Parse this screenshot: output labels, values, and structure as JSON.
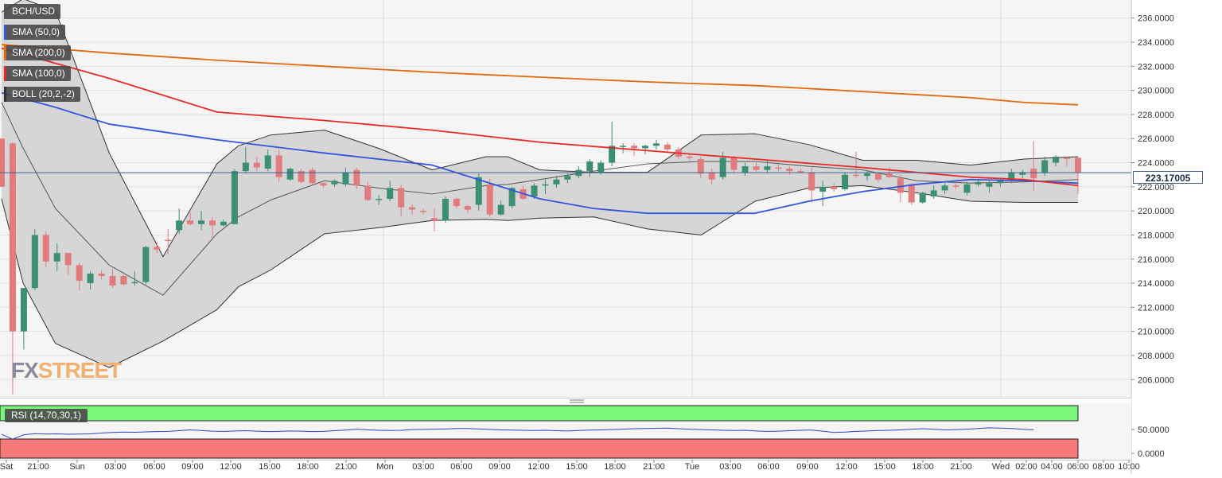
{
  "symbol": "BCH/USD",
  "legend": [
    {
      "label": "SMA (50,0)",
      "color": "#3355dd"
    },
    {
      "label": "SMA (200,0)",
      "color": "#e06a10"
    },
    {
      "label": "SMA (100,0)",
      "color": "#e62a2a"
    },
    {
      "label": "BOLL (20,2,-2)",
      "color": "#333333"
    }
  ],
  "watermark": {
    "part1": "FX",
    "part2": "STREET"
  },
  "last_price_label": "223.17005",
  "colors": {
    "up": "#3c8f72",
    "down": "#e07c7c",
    "band_fill": "#d3d3d3",
    "rsi_overbought": "#7af77a",
    "rsi_oversold": "#f77a7a",
    "rsi_line": "#3344cc"
  },
  "rsi": {
    "label": "RSI (14,70,30,1)",
    "ticks": [
      "50.0000",
      "0.0000"
    ]
  },
  "chart_data": {
    "type": "candlestick",
    "ylim": [
      204.5,
      237.5
    ],
    "y_ticks": [
      206,
      208,
      210,
      212,
      214,
      216,
      218,
      220,
      222,
      224,
      226,
      228,
      230,
      232,
      234,
      236
    ],
    "y_tick_labels": [
      "206.0000",
      "208.0000",
      "210.0000",
      "212.0000",
      "214.0000",
      "216.0000",
      "218.0000",
      "220.0000",
      "222.0000",
      "224.0000",
      "226.0000",
      "228.0000",
      "230.0000",
      "232.0000",
      "234.0000",
      "236.0000"
    ],
    "x_tick_labels": [
      "Sat",
      "21:00",
      "Sun",
      "03:00",
      "06:00",
      "09:00",
      "12:00",
      "15:00",
      "18:00",
      "21:00",
      "Mon",
      "03:00",
      "06:00",
      "09:00",
      "12:00",
      "15:00",
      "18:00",
      "21:00",
      "Tue",
      "03:00",
      "06:00",
      "09:00",
      "12:00",
      "15:00",
      "18:00",
      "21:00",
      "Wed",
      "02:00",
      "04:00",
      "06:00",
      "08:00",
      "10:00"
    ],
    "last_price": 223.17,
    "candles": [
      {
        "o": 226,
        "h": 226,
        "l": 222,
        "c": 222
      },
      {
        "o": 225.6,
        "h": 225.7,
        "l": 204.8,
        "c": 210
      },
      {
        "o": 210,
        "h": 213.6,
        "l": 208.5,
        "c": 213.6
      },
      {
        "o": 213.6,
        "h": 218.5,
        "l": 213.4,
        "c": 218
      },
      {
        "o": 218,
        "h": 218.3,
        "l": 215.3,
        "c": 215.8
      },
      {
        "o": 215.8,
        "h": 217.3,
        "l": 215,
        "c": 216.5
      },
      {
        "o": 216.5,
        "h": 216.5,
        "l": 214.7,
        "c": 215.5
      },
      {
        "o": 215.5,
        "h": 215.7,
        "l": 213.4,
        "c": 214.2
      },
      {
        "o": 214,
        "h": 215,
        "l": 213.5,
        "c": 214.8
      },
      {
        "o": 214.8,
        "h": 215.1,
        "l": 214.3,
        "c": 214.6
      },
      {
        "o": 214.6,
        "h": 215.2,
        "l": 213.6,
        "c": 213.8
      },
      {
        "o": 214.6,
        "h": 214.7,
        "l": 213.8,
        "c": 213.9
      },
      {
        "o": 214,
        "h": 215,
        "l": 213.8,
        "c": 214.1
      },
      {
        "o": 214.1,
        "h": 217.1,
        "l": 213.9,
        "c": 217
      },
      {
        "o": 217,
        "h": 217.4,
        "l": 216.5,
        "c": 216.8
      },
      {
        "o": 217.6,
        "h": 218.5,
        "l": 216.4,
        "c": 217.5
      },
      {
        "o": 218.4,
        "h": 220.2,
        "l": 218.1,
        "c": 219.2
      },
      {
        "o": 219.2,
        "h": 219.9,
        "l": 218.8,
        "c": 218.9
      },
      {
        "o": 218.9,
        "h": 220,
        "l": 218.4,
        "c": 219.2
      },
      {
        "o": 219.2,
        "h": 219.5,
        "l": 217.7,
        "c": 218.8
      },
      {
        "o": 218.8,
        "h": 219.3,
        "l": 218.7,
        "c": 219.1
      },
      {
        "o": 218.9,
        "h": 223.5,
        "l": 218.9,
        "c": 223.3
      },
      {
        "o": 223.3,
        "h": 225.3,
        "l": 223.1,
        "c": 224
      },
      {
        "o": 224,
        "h": 224.5,
        "l": 223.3,
        "c": 223.6
      },
      {
        "o": 223.5,
        "h": 225.1,
        "l": 223.3,
        "c": 224.6
      },
      {
        "o": 224.6,
        "h": 225.1,
        "l": 222.4,
        "c": 222.8
      },
      {
        "o": 222.6,
        "h": 223.6,
        "l": 222.5,
        "c": 223.5
      },
      {
        "o": 223.3,
        "h": 223.5,
        "l": 222.3,
        "c": 222.4
      },
      {
        "o": 223.4,
        "h": 223.6,
        "l": 222.1,
        "c": 222.3
      },
      {
        "o": 222.3,
        "h": 222.5,
        "l": 221.9,
        "c": 222.1
      },
      {
        "o": 222.2,
        "h": 222.6,
        "l": 222,
        "c": 222.5
      },
      {
        "o": 222.2,
        "h": 223.6,
        "l": 222,
        "c": 223.2
      },
      {
        "o": 223.4,
        "h": 223.6,
        "l": 221.8,
        "c": 222.1
      },
      {
        "o": 222.1,
        "h": 222.4,
        "l": 220.8,
        "c": 220.9
      },
      {
        "o": 220.9,
        "h": 221.3,
        "l": 220.5,
        "c": 221
      },
      {
        "o": 221,
        "h": 222.5,
        "l": 220.8,
        "c": 221.9
      },
      {
        "o": 221.9,
        "h": 222.2,
        "l": 219.5,
        "c": 220.3
      },
      {
        "o": 220.3,
        "h": 220.5,
        "l": 219.7,
        "c": 220.1
      },
      {
        "o": 220,
        "h": 220.2,
        "l": 219.7,
        "c": 219.9
      },
      {
        "o": 219.4,
        "h": 220.2,
        "l": 218.3,
        "c": 219.2
      },
      {
        "o": 219.2,
        "h": 221.2,
        "l": 219,
        "c": 221
      },
      {
        "o": 221,
        "h": 221.1,
        "l": 220.2,
        "c": 220.4
      },
      {
        "o": 220.4,
        "h": 220.5,
        "l": 219.8,
        "c": 220.1
      },
      {
        "o": 220.5,
        "h": 223.1,
        "l": 220,
        "c": 222.8
      },
      {
        "o": 222.2,
        "h": 222.7,
        "l": 219.5,
        "c": 219.7
      },
      {
        "o": 219.7,
        "h": 220.9,
        "l": 219.6,
        "c": 220.5
      },
      {
        "o": 220.4,
        "h": 222,
        "l": 220.2,
        "c": 221.9
      },
      {
        "o": 221.8,
        "h": 222.1,
        "l": 220.9,
        "c": 221
      },
      {
        "o": 221.2,
        "h": 222.3,
        "l": 221,
        "c": 222.1
      },
      {
        "o": 222.1,
        "h": 222.6,
        "l": 221.4,
        "c": 222.2
      },
      {
        "o": 222.2,
        "h": 222.9,
        "l": 221.9,
        "c": 222.6
      },
      {
        "o": 222.6,
        "h": 223.1,
        "l": 222.3,
        "c": 222.9
      },
      {
        "o": 222.9,
        "h": 223.7,
        "l": 222.7,
        "c": 223.4
      },
      {
        "o": 223.3,
        "h": 224.3,
        "l": 222.8,
        "c": 224.1
      },
      {
        "o": 223.2,
        "h": 224.2,
        "l": 223,
        "c": 224
      },
      {
        "o": 224,
        "h": 227.4,
        "l": 223.7,
        "c": 225.4
      },
      {
        "o": 225.3,
        "h": 225.6,
        "l": 224.8,
        "c": 225.4
      },
      {
        "o": 225.4,
        "h": 225.6,
        "l": 224.6,
        "c": 225.2
      },
      {
        "o": 225.2,
        "h": 225.5,
        "l": 224.7,
        "c": 225.4
      },
      {
        "o": 225.4,
        "h": 225.9,
        "l": 225.1,
        "c": 225.6
      },
      {
        "o": 225.5,
        "h": 225.7,
        "l": 224.9,
        "c": 225.1
      },
      {
        "o": 225.1,
        "h": 225.3,
        "l": 224.3,
        "c": 224.5
      },
      {
        "o": 224.5,
        "h": 224.7,
        "l": 224.2,
        "c": 224.4
      },
      {
        "o": 224.3,
        "h": 224.5,
        "l": 222.7,
        "c": 223.1
      },
      {
        "o": 223.2,
        "h": 223.5,
        "l": 222.2,
        "c": 222.6
      },
      {
        "o": 222.8,
        "h": 224.9,
        "l": 222.6,
        "c": 224.4
      },
      {
        "o": 224.4,
        "h": 224.6,
        "l": 223.1,
        "c": 223.4
      },
      {
        "o": 223.2,
        "h": 224,
        "l": 222.9,
        "c": 223.7
      },
      {
        "o": 223.7,
        "h": 224,
        "l": 223.2,
        "c": 223.4
      },
      {
        "o": 223.4,
        "h": 224.2,
        "l": 223.1,
        "c": 223.7
      },
      {
        "o": 223.6,
        "h": 223.9,
        "l": 223.3,
        "c": 223.5
      },
      {
        "o": 223.5,
        "h": 223.7,
        "l": 223,
        "c": 223.3
      },
      {
        "o": 223.3,
        "h": 223.5,
        "l": 223.1,
        "c": 223.2
      },
      {
        "o": 223.2,
        "h": 223.6,
        "l": 220.7,
        "c": 221.7
      },
      {
        "o": 221.6,
        "h": 222.5,
        "l": 220.4,
        "c": 222
      },
      {
        "o": 222,
        "h": 222.3,
        "l": 221.6,
        "c": 221.8
      },
      {
        "o": 221.8,
        "h": 223.2,
        "l": 221.7,
        "c": 223
      },
      {
        "o": 223,
        "h": 224.9,
        "l": 222.7,
        "c": 222.9
      },
      {
        "o": 222.9,
        "h": 223.3,
        "l": 222.5,
        "c": 223.1
      },
      {
        "o": 223.1,
        "h": 223.2,
        "l": 222.4,
        "c": 222.6
      },
      {
        "o": 223.1,
        "h": 223.6,
        "l": 222.7,
        "c": 222.8
      },
      {
        "o": 222.7,
        "h": 223,
        "l": 220.7,
        "c": 221.5
      },
      {
        "o": 222.2,
        "h": 222.3,
        "l": 220.5,
        "c": 220.7
      },
      {
        "o": 220.7,
        "h": 221.6,
        "l": 220.6,
        "c": 221.5
      },
      {
        "o": 221.2,
        "h": 222.1,
        "l": 221,
        "c": 221.7
      },
      {
        "o": 221.7,
        "h": 222.3,
        "l": 221.4,
        "c": 222.1
      },
      {
        "o": 222.1,
        "h": 222.5,
        "l": 221.8,
        "c": 222
      },
      {
        "o": 221.5,
        "h": 222.4,
        "l": 221.3,
        "c": 222.2
      },
      {
        "o": 222.2,
        "h": 222.6,
        "l": 222,
        "c": 222.4
      },
      {
        "o": 222,
        "h": 222.5,
        "l": 221.5,
        "c": 222.3
      },
      {
        "o": 222.3,
        "h": 222.6,
        "l": 222,
        "c": 222.5
      },
      {
        "o": 222.5,
        "h": 223.5,
        "l": 222.3,
        "c": 223.2
      },
      {
        "o": 223,
        "h": 223.4,
        "l": 222.7,
        "c": 223.2
      },
      {
        "o": 223.5,
        "h": 225.8,
        "l": 221.7,
        "c": 222.7
      },
      {
        "o": 223.2,
        "h": 224.5,
        "l": 222.9,
        "c": 224.2
      },
      {
        "o": 224,
        "h": 224.6,
        "l": 223.7,
        "c": 224.5
      },
      {
        "o": 224.4,
        "h": 224.5,
        "l": 223.7,
        "c": 224.3
      },
      {
        "o": 224.4,
        "h": 224.5,
        "l": 221.4,
        "c": 223.2
      }
    ],
    "series": [
      {
        "name": "SMA (50,0)",
        "x": [
          0,
          5,
          10,
          20,
          30,
          40,
          45,
          50,
          55,
          60,
          70,
          75,
          80,
          85,
          90,
          95,
          100
        ],
        "y": [
          229.8,
          228.6,
          227.2,
          225.9,
          224.8,
          223.8,
          222.4,
          221,
          220.2,
          219.8,
          219.8,
          220.8,
          221.6,
          222.2,
          222.6,
          222.5,
          222.3
        ]
      },
      {
        "name": "SMA (100,0)",
        "x": [
          0,
          10,
          20,
          30,
          40,
          50,
          60,
          70,
          80,
          90,
          95,
          100
        ],
        "y": [
          233.5,
          231,
          228.2,
          227.5,
          226.7,
          225.7,
          225,
          224.3,
          223.6,
          222.8,
          222.6,
          222.1
        ]
      },
      {
        "name": "SMA (200,0)",
        "x": [
          0,
          10,
          20,
          30,
          40,
          50,
          60,
          70,
          80,
          90,
          95,
          100
        ],
        "y": [
          233.8,
          233.1,
          232.5,
          232,
          231.5,
          231.1,
          230.7,
          230.4,
          229.9,
          229.4,
          229,
          228.8
        ]
      }
    ],
    "bollinger": {
      "x": [
        0,
        2,
        5,
        10,
        15,
        20,
        22,
        25,
        30,
        35,
        40,
        45,
        47,
        50,
        55,
        60,
        65,
        70,
        75,
        80,
        85,
        90,
        95,
        100
      ],
      "upper": [
        236.5,
        237.6,
        236.6,
        224.8,
        216.2,
        223.9,
        225.4,
        226.3,
        226.7,
        225.2,
        223.4,
        224.5,
        224.5,
        223.4,
        223.2,
        223.2,
        226.3,
        226.4,
        225.5,
        224.2,
        224.2,
        223.8,
        224.3,
        224.5
      ],
      "middle": [
        229,
        225.2,
        220.2,
        215.5,
        213,
        218.1,
        219.5,
        220.9,
        222.5,
        221.9,
        221.4,
        222.1,
        222.2,
        222.6,
        223.3,
        223.9,
        224.1,
        224.1,
        223.7,
        223.4,
        222.5,
        222.3,
        222.4,
        222.6
      ],
      "lower": [
        221,
        214,
        209,
        207,
        209.2,
        211.8,
        213.7,
        215.1,
        218.1,
        218.6,
        219.2,
        219.3,
        219.2,
        219.4,
        219.5,
        218.5,
        218,
        220.8,
        221.9,
        222.1,
        221.5,
        220.8,
        220.7,
        220.7
      ]
    },
    "rsi_values": [
      32,
      10,
      30,
      35,
      33,
      34,
      32,
      33,
      34,
      38,
      40,
      42,
      41,
      43,
      44,
      45,
      48,
      52,
      49,
      46,
      45,
      47,
      48,
      46,
      44,
      45,
      47,
      46,
      44,
      45,
      48,
      51,
      55,
      52,
      50,
      49,
      50,
      53,
      54,
      55,
      56,
      58,
      58,
      56,
      54,
      52,
      51,
      50,
      49,
      50,
      48,
      47,
      49,
      51,
      52,
      53,
      55,
      57,
      58,
      59,
      60,
      57,
      55,
      53,
      52,
      50,
      49,
      50,
      47,
      45,
      46,
      48,
      50,
      51,
      46,
      40,
      42,
      45,
      47,
      49,
      50,
      52,
      55,
      57,
      55,
      52,
      53,
      55,
      58,
      61,
      60,
      58,
      55,
      52
    ]
  }
}
